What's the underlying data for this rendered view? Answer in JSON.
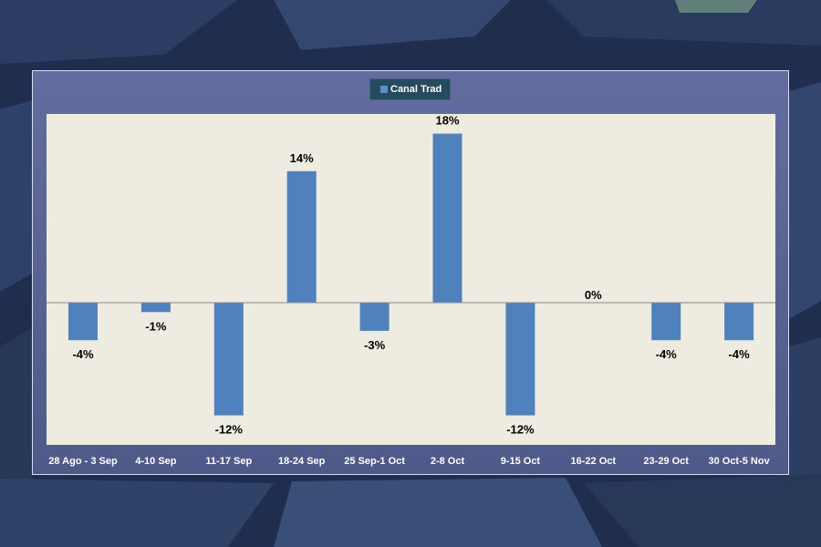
{
  "colors": {
    "background": "#1f2d4f",
    "panel": "#5a6496",
    "plot_area": "#eeebe1",
    "bar": "#4f81bd",
    "legend_bg": "#264a5e",
    "zero_line": "#8a8a8a"
  },
  "legend": {
    "label": "Canal Trad",
    "placement": "top-center"
  },
  "chart_data": {
    "type": "bar",
    "categories": [
      "28 Ago - 3 Sep",
      "4-10 Sep",
      "11-17 Sep",
      "18-24 Sep",
      "25 Sep-1 Oct",
      "2-8 Oct",
      "9-15 Oct",
      "16-22 Oct",
      "23-29 Oct",
      "30 Oct-5 Nov"
    ],
    "series": [
      {
        "name": "Canal Trad",
        "values": [
          -4,
          -1,
          -12,
          14,
          -3,
          18,
          -12,
          0,
          -4,
          -4
        ]
      }
    ],
    "value_labels": [
      "-4%",
      "-1%",
      "-12%",
      "14%",
      "-3%",
      "18%",
      "-12%",
      "0%",
      "-4%",
      "-4%"
    ],
    "ylim": [
      -15,
      20
    ],
    "grid": false,
    "y_axis_visible": false
  }
}
